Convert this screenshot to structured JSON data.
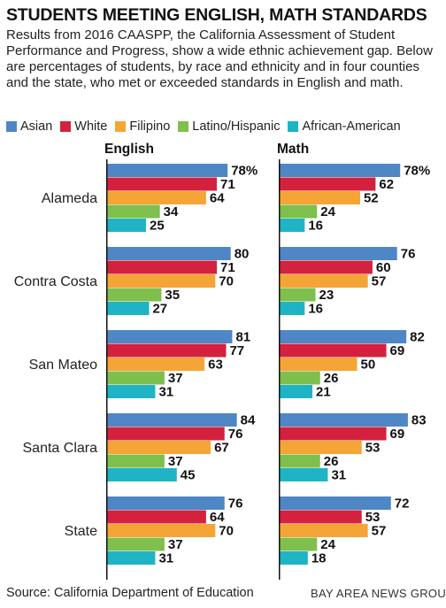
{
  "header": {
    "title": "STUDENTS MEETING ENGLISH, MATH STANDARDS",
    "description": "Results from 2016 CAASPP, the California Assessment of Student Performance and Progress, show a wide ethnic achievement gap. Below are percentages of students, by race and ethnicity and in four counties and the state, who met or exceeded standards in English and math."
  },
  "footer": {
    "source": "Source: California Department of Education",
    "credit": "BAY AREA NEWS GROUP"
  },
  "chart_data": {
    "type": "bar",
    "orientation": "horizontal",
    "unit": "%",
    "grid": false,
    "legend_position": "top",
    "xlim": [
      0,
      100
    ],
    "categories": [
      "Alameda",
      "Contra Costa",
      "San Mateo",
      "Santa Clara",
      "State"
    ],
    "series_colors": {
      "Asian": "#4f86c6",
      "White": "#d4213d",
      "Filipino": "#f5a535",
      "Latino/Hispanic": "#7fbf4d",
      "African-American": "#1fb3c6"
    },
    "legend": [
      "Asian",
      "White",
      "Filipino",
      "Latino/Hispanic",
      "African-American"
    ],
    "panels": [
      {
        "title": "English",
        "series": [
          {
            "name": "Asian",
            "values": [
              78,
              80,
              81,
              84,
              76
            ]
          },
          {
            "name": "White",
            "values": [
              71,
              71,
              77,
              76,
              64
            ]
          },
          {
            "name": "Filipino",
            "values": [
              64,
              70,
              63,
              67,
              70
            ]
          },
          {
            "name": "Latino/Hispanic",
            "values": [
              34,
              35,
              37,
              37,
              37
            ]
          },
          {
            "name": "African-American",
            "values": [
              25,
              27,
              31,
              45,
              31
            ]
          }
        ]
      },
      {
        "title": "Math",
        "series": [
          {
            "name": "Asian",
            "values": [
              78,
              76,
              82,
              83,
              72
            ]
          },
          {
            "name": "White",
            "values": [
              62,
              60,
              69,
              69,
              53
            ]
          },
          {
            "name": "Filipino",
            "values": [
              52,
              57,
              50,
              53,
              57
            ]
          },
          {
            "name": "Latino/Hispanic",
            "values": [
              24,
              23,
              26,
              26,
              24
            ]
          },
          {
            "name": "African-American",
            "values": [
              16,
              16,
              21,
              31,
              18
            ]
          }
        ]
      }
    ]
  }
}
